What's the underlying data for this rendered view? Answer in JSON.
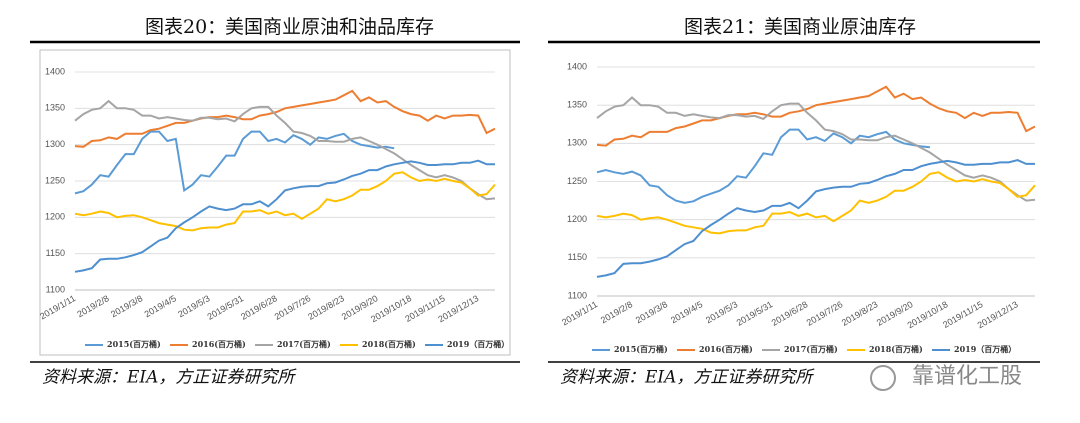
{
  "watermark": "靠谱化工股",
  "chart_data": [
    {
      "type": "line",
      "figure_label": "图表20：",
      "title": "美国商业原油和油品库存",
      "source": "资料来源：EIA，方正证券研究所",
      "categories": [
        "2019/1/11",
        null,
        null,
        null,
        "2019/2/8",
        null,
        null,
        null,
        "2019/3/8",
        null,
        null,
        null,
        "2019/4/5",
        null,
        null,
        null,
        "2019/5/3",
        null,
        null,
        null,
        "2019/5/31",
        null,
        null,
        null,
        "2019/6/28",
        null,
        null,
        null,
        "2019/7/26",
        null,
        null,
        null,
        "2019/8/23",
        null,
        null,
        null,
        "2019/9/20",
        null,
        null,
        null,
        "2019/10/18",
        null,
        null,
        null,
        "2019/11/15",
        null,
        null,
        null,
        "2019/12/13",
        null,
        null
      ],
      "ylim": [
        1100,
        1400
      ],
      "yticks": [
        1100,
        1150,
        1200,
        1250,
        1300,
        1350,
        1400
      ],
      "series": [
        {
          "name": "2015(百万桶)",
          "color": "#5b9bd5",
          "values": [
            1233,
            1236,
            1245,
            1258,
            1256,
            1272,
            1287,
            1287,
            1308,
            1318,
            1318,
            1305,
            1308,
            1237,
            1245,
            1258,
            1256,
            1270,
            1285,
            1285,
            1308,
            1318,
            1318,
            1305,
            1308,
            1303,
            1313,
            1308,
            1300,
            1310,
            1308,
            1312,
            1315,
            1305,
            1300,
            1298,
            1296,
            1297,
            1295,
            null,
            null,
            null,
            null,
            null,
            null,
            null,
            null,
            null,
            null,
            null,
            null
          ]
        },
        {
          "name": "2016(百万桶)",
          "color": "#ed7d31",
          "values": [
            1298,
            1297,
            1305,
            1306,
            1310,
            1308,
            1315,
            1315,
            1315,
            1320,
            1322,
            1326,
            1330,
            1330,
            1333,
            1336,
            1338,
            1338,
            1340,
            1338,
            1335,
            1335,
            1340,
            1342,
            1345,
            1350,
            1352,
            1354,
            1356,
            1358,
            1360,
            1362,
            1368,
            1374,
            1360,
            1365,
            1358,
            1360,
            1352,
            1346,
            1342,
            1340,
            1333,
            1340,
            1336,
            1340,
            1340,
            1341,
            1340,
            1316,
            1322
          ]
        },
        {
          "name": "2017(百万桶)",
          "color": "#a5a5a5",
          "values": [
            1333,
            1342,
            1348,
            1350,
            1360,
            1350,
            1350,
            1348,
            1340,
            1340,
            1336,
            1338,
            1336,
            1334,
            1333,
            1337,
            1337,
            1335,
            1336,
            1332,
            1342,
            1350,
            1352,
            1352,
            1340,
            1330,
            1318,
            1316,
            1312,
            1305,
            1305,
            1304,
            1304,
            1308,
            1310,
            1305,
            1300,
            1294,
            1288,
            1280,
            1272,
            1265,
            1258,
            1255,
            1258,
            1255,
            1250,
            1240,
            1232,
            1225,
            1226
          ]
        },
        {
          "name": "2018(百万桶)",
          "color": "#ffc000",
          "values": [
            1205,
            1203,
            1205,
            1208,
            1206,
            1200,
            1202,
            1203,
            1200,
            1196,
            1192,
            1190,
            1188,
            1183,
            1182,
            1185,
            1186,
            1186,
            1190,
            1192,
            1208,
            1208,
            1210,
            1205,
            1208,
            1203,
            1205,
            1198,
            1205,
            1212,
            1225,
            1222,
            1225,
            1230,
            1238,
            1238,
            1243,
            1250,
            1260,
            1262,
            1255,
            1250,
            1252,
            1250,
            1253,
            1250,
            1248,
            1240,
            1230,
            1232,
            1245
          ]
        },
        {
          "name": "2019（百万桶）",
          "color": "#4e8fcf",
          "values": [
            1125,
            1127,
            1130,
            1142,
            1143,
            1143,
            1145,
            1148,
            1152,
            1160,
            1168,
            1172,
            1185,
            1193,
            1200,
            1208,
            1215,
            1212,
            1210,
            1212,
            1218,
            1218,
            1222,
            1215,
            1225,
            1237,
            1240,
            1242,
            1243,
            1243,
            1247,
            1248,
            1252,
            1257,
            1260,
            1265,
            1265,
            1270,
            1273,
            1275,
            1277,
            1275,
            1272,
            1272,
            1273,
            1273,
            1275,
            1275,
            1278,
            1273,
            1273
          ]
        }
      ]
    },
    {
      "type": "line",
      "figure_label": "图表21：",
      "title": "美国商业原油库存",
      "source": "资料来源：EIA，方正证券研究所",
      "categories": [
        "2019/1/11",
        null,
        null,
        null,
        "2019/2/8",
        null,
        null,
        null,
        "2019/3/8",
        null,
        null,
        null,
        "2019/4/5",
        null,
        null,
        null,
        "2019/5/3",
        null,
        null,
        null,
        "2019/5/31",
        null,
        null,
        null,
        "2019/6/28",
        null,
        null,
        null,
        "2019/7/26",
        null,
        null,
        null,
        "2019/8/23",
        null,
        null,
        null,
        "2019/9/20",
        null,
        null,
        null,
        "2019/10/18",
        null,
        null,
        null,
        "2019/11/15",
        null,
        null,
        null,
        "2019/12/13",
        null,
        null
      ],
      "ylim": [
        1100,
        1400
      ],
      "yticks": [
        1100,
        1150,
        1200,
        1250,
        1300,
        1350,
        1400
      ],
      "series": [
        {
          "name": "2015(百万桶)",
          "color": "#5b9bd5",
          "values": [
            1262,
            1265,
            1262,
            1260,
            1263,
            1258,
            1245,
            1243,
            1232,
            1225,
            1222,
            1224,
            1230,
            1234,
            1238,
            1245,
            1257,
            1255,
            1270,
            1287,
            1285,
            1308,
            1318,
            1318,
            1305,
            1308,
            1303,
            1313,
            1308,
            1300,
            1310,
            1308,
            1312,
            1315,
            1305,
            1300,
            1298,
            1296,
            1295,
            null,
            null,
            null,
            null,
            null,
            null,
            null,
            null,
            null,
            null,
            null,
            null
          ]
        },
        {
          "name": "2016(百万桶)",
          "color": "#ed7d31",
          "values": [
            1298,
            1297,
            1305,
            1306,
            1310,
            1308,
            1315,
            1315,
            1315,
            1320,
            1322,
            1326,
            1330,
            1330,
            1333,
            1336,
            1338,
            1338,
            1340,
            1338,
            1335,
            1335,
            1340,
            1342,
            1345,
            1350,
            1352,
            1354,
            1356,
            1358,
            1360,
            1362,
            1368,
            1374,
            1360,
            1365,
            1358,
            1360,
            1352,
            1346,
            1342,
            1340,
            1333,
            1340,
            1336,
            1340,
            1340,
            1341,
            1340,
            1316,
            1322
          ]
        },
        {
          "name": "2017(百万桶)",
          "color": "#a5a5a5",
          "values": [
            1333,
            1342,
            1348,
            1350,
            1360,
            1350,
            1350,
            1348,
            1340,
            1340,
            1336,
            1338,
            1336,
            1334,
            1333,
            1337,
            1337,
            1335,
            1336,
            1332,
            1342,
            1350,
            1352,
            1352,
            1340,
            1330,
            1318,
            1316,
            1312,
            1305,
            1305,
            1304,
            1304,
            1308,
            1310,
            1305,
            1300,
            1294,
            1288,
            1280,
            1272,
            1265,
            1258,
            1255,
            1258,
            1255,
            1250,
            1240,
            1232,
            1225,
            1226
          ]
        },
        {
          "name": "2018(百万桶)",
          "color": "#ffc000",
          "values": [
            1205,
            1203,
            1205,
            1208,
            1206,
            1200,
            1202,
            1203,
            1200,
            1196,
            1192,
            1190,
            1188,
            1183,
            1182,
            1185,
            1186,
            1186,
            1190,
            1192,
            1208,
            1208,
            1210,
            1205,
            1208,
            1203,
            1205,
            1198,
            1205,
            1212,
            1225,
            1222,
            1225,
            1230,
            1238,
            1238,
            1243,
            1250,
            1260,
            1262,
            1255,
            1250,
            1252,
            1250,
            1253,
            1250,
            1248,
            1240,
            1230,
            1232,
            1245
          ]
        },
        {
          "name": "2019（百万桶）",
          "color": "#4e8fcf",
          "values": [
            1125,
            1127,
            1130,
            1142,
            1143,
            1143,
            1145,
            1148,
            1152,
            1160,
            1168,
            1172,
            1185,
            1193,
            1200,
            1208,
            1215,
            1212,
            1210,
            1212,
            1218,
            1218,
            1222,
            1215,
            1225,
            1237,
            1240,
            1242,
            1243,
            1243,
            1247,
            1248,
            1252,
            1257,
            1260,
            1265,
            1265,
            1270,
            1273,
            1275,
            1277,
            1275,
            1272,
            1272,
            1273,
            1273,
            1275,
            1275,
            1278,
            1273,
            1273
          ]
        }
      ]
    }
  ]
}
